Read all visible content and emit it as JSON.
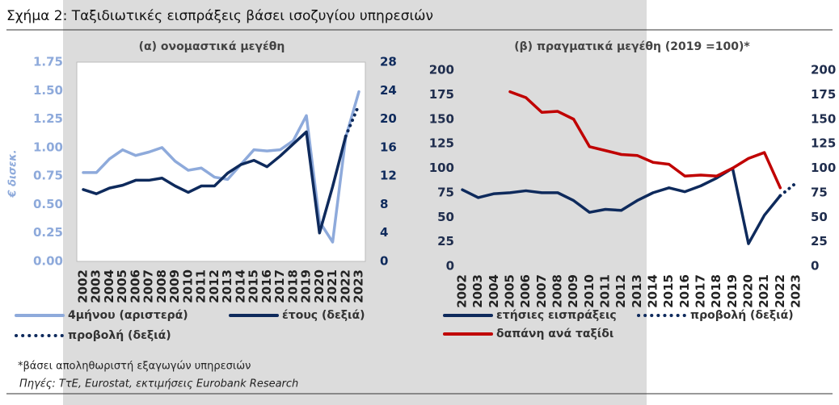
{
  "header": {
    "title": "Σχήμα 2: Ταξιδιωτικές εισπράξεις βάσει ισοζυγίου υπηρεσιών"
  },
  "chart_data": [
    {
      "type": "line",
      "title": "(α) ονομαστικά μεγέθη",
      "ylabel": "€ δισεκ.",
      "categories": [
        "2002",
        "2003",
        "2004",
        "2005",
        "2006",
        "2007",
        "2008",
        "2009",
        "2010",
        "2011",
        "2012",
        "2013",
        "2014",
        "2015",
        "2016",
        "2017",
        "2018",
        "2019",
        "2020",
        "2021",
        "2022",
        "2023"
      ],
      "ylim": [
        0,
        1.75
      ],
      "yticks": [
        {
          "value": 0,
          "label": "0.00"
        },
        0.25,
        {
          "value": 0.5,
          "label": "0.50"
        },
        0.75,
        {
          "value": 1,
          "label": "1.00"
        },
        1.25,
        {
          "value": 1.5,
          "label": "1.50"
        },
        1.75
      ],
      "y2lim": [
        0,
        28
      ],
      "y2ticks": [
        0,
        4,
        8,
        12,
        16,
        20,
        24,
        28
      ],
      "series": [
        {
          "name": "4μήνου (αριστερά)",
          "color": "#8eaadb",
          "values": [
            0.78,
            0.78,
            0.9,
            0.98,
            0.93,
            0.96,
            1.0,
            0.88,
            0.8,
            0.82,
            0.74,
            0.72,
            0.85,
            0.98,
            0.97,
            0.98,
            1.06,
            1.28,
            0.35,
            0.17,
            1.09,
            1.49
          ]
        },
        {
          "name": "έτους (δεξιά)",
          "color": "#0e2a5c",
          "axis": "y2",
          "values": [
            10.1,
            9.5,
            10.3,
            10.7,
            11.4,
            11.4,
            11.7,
            10.6,
            9.7,
            10.6,
            10.6,
            12.4,
            13.6,
            14.2,
            13.3,
            14.8,
            16.5,
            18.2,
            4.0,
            10.5,
            17.6,
            null
          ]
        },
        {
          "name": "προβολή (δεξιά)",
          "color": "#0e2a5c",
          "axis": "y2",
          "dotted": true,
          "values": [
            null,
            null,
            null,
            null,
            null,
            null,
            null,
            null,
            null,
            null,
            null,
            null,
            null,
            null,
            null,
            null,
            null,
            null,
            null,
            null,
            17.6,
            22
          ]
        }
      ]
    },
    {
      "type": "line",
      "title": "(β) πραγματικά μεγέθη (2019 =100)*",
      "categories": [
        "2002",
        "2003",
        "2004",
        "2005",
        "2006",
        "2007",
        "2008",
        "2009",
        "2010",
        "2011",
        "2012",
        "2013",
        "2014",
        "2015",
        "2016",
        "2017",
        "2018",
        "2019",
        "2020",
        "2021",
        "2022",
        "2023"
      ],
      "ylim": [
        0,
        200
      ],
      "yticks": [
        0,
        25,
        50,
        75,
        100,
        125,
        150,
        175,
        200
      ],
      "y2lim": [
        0,
        200
      ],
      "y2ticks": [
        0,
        25,
        50,
        75,
        100,
        125,
        150,
        175,
        200
      ],
      "series": [
        {
          "name": "ετήσιες εισπράξεις",
          "color": "#0e2a5c",
          "values": [
            78,
            70,
            74,
            75,
            77,
            75,
            75,
            67,
            55,
            58,
            57,
            67,
            75,
            80,
            76,
            82,
            90,
            100,
            23,
            52,
            72,
            null
          ]
        },
        {
          "name": "προβολή (δεξιά)",
          "color": "#0e2a5c",
          "axis": "y2",
          "dotted": true,
          "values": [
            null,
            null,
            null,
            null,
            null,
            null,
            null,
            null,
            null,
            null,
            null,
            null,
            null,
            null,
            null,
            null,
            null,
            null,
            null,
            null,
            72,
            85
          ]
        },
        {
          "name": "δαπάνη ανά ταξίδι",
          "color": "#c00000",
          "values": [
            null,
            null,
            null,
            178,
            172,
            157,
            158,
            150,
            122,
            118,
            114,
            113,
            106,
            104,
            92,
            93,
            92,
            100,
            110,
            116,
            80,
            null
          ]
        }
      ]
    }
  ],
  "footnote": "*βάσει αποληθωριστή εξαγωγών υπηρεσιών",
  "source": "Πηγές: ΤτΕ, Eurostat, εκτιμήσεις Eurobank Research"
}
